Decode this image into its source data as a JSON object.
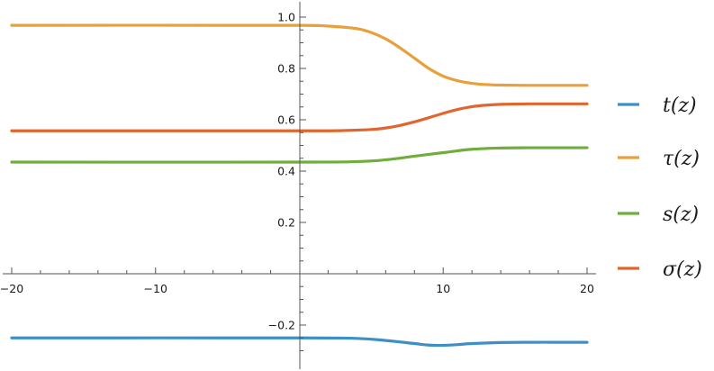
{
  "chart_data": {
    "type": "line",
    "title": "",
    "xlabel": "",
    "ylabel": "",
    "xlim": [
      -20,
      20
    ],
    "ylim": [
      -0.33,
      1.02
    ],
    "x_ticks": [
      -20,
      -10,
      10,
      20
    ],
    "x_tick_labels": [
      "−20",
      "−10",
      "10",
      "20"
    ],
    "y_ticks": [
      -0.2,
      0.2,
      0.4,
      0.6,
      0.8,
      1.0
    ],
    "y_tick_labels": [
      "−0.2",
      "0.2",
      "0.4",
      "0.6",
      "0.8",
      "1.0"
    ],
    "grid": false,
    "legend_position": "right",
    "series": [
      {
        "name": "t(z)",
        "color": "#3E8FC8",
        "x": [
          -20,
          0,
          4,
          6,
          8,
          9,
          10,
          11,
          12,
          14,
          16,
          18,
          20
        ],
        "y": [
          -0.25,
          -0.25,
          -0.252,
          -0.26,
          -0.272,
          -0.278,
          -0.279,
          -0.276,
          -0.272,
          -0.268,
          -0.267,
          -0.267,
          -0.267
        ]
      },
      {
        "name": "τ(z)",
        "color": "#E8A03A",
        "x": [
          -20,
          0,
          2,
          4,
          5,
          6,
          7,
          8,
          9,
          10,
          11,
          12,
          13,
          14,
          16,
          18,
          20
        ],
        "y": [
          0.968,
          0.968,
          0.965,
          0.955,
          0.94,
          0.915,
          0.88,
          0.84,
          0.8,
          0.77,
          0.752,
          0.742,
          0.737,
          0.735,
          0.734,
          0.734,
          0.734
        ]
      },
      {
        "name": "s(z)",
        "color": "#6FAE3A",
        "x": [
          -20,
          0,
          4,
          6,
          8,
          10,
          12,
          14,
          16,
          18,
          20
        ],
        "y": [
          0.435,
          0.435,
          0.437,
          0.444,
          0.458,
          0.472,
          0.485,
          0.49,
          0.491,
          0.491,
          0.491
        ]
      },
      {
        "name": "σ(z)",
        "color": "#E0662E",
        "x": [
          -20,
          0,
          3,
          5,
          6,
          7,
          8,
          9,
          10,
          11,
          12,
          13,
          14,
          16,
          18,
          20
        ],
        "y": [
          0.557,
          0.557,
          0.558,
          0.562,
          0.568,
          0.578,
          0.592,
          0.608,
          0.625,
          0.64,
          0.651,
          0.657,
          0.66,
          0.662,
          0.662,
          0.662
        ]
      }
    ]
  }
}
